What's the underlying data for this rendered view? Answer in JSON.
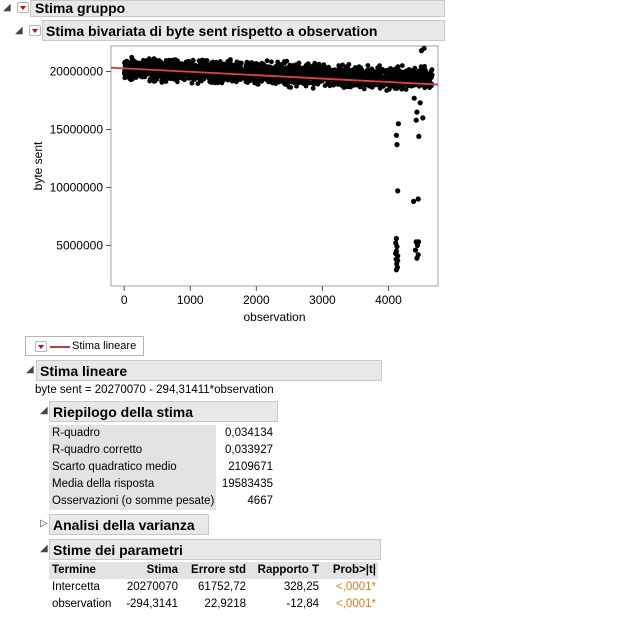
{
  "group": {
    "title": "Stima gruppo"
  },
  "bivariate": {
    "title": "Stima bivariata di byte sent rispetto a observation"
  },
  "chart_data": {
    "type": "scatter",
    "xlabel": "observation",
    "ylabel": "byte sent",
    "xlim": [
      -200,
      4750
    ],
    "ylim": [
      1500000,
      22200000
    ],
    "x_ticks": [
      0,
      1000,
      2000,
      3000,
      4000
    ],
    "y_ticks": [
      5000000,
      10000000,
      15000000,
      20000000
    ],
    "x_tick_labels": [
      "0",
      "1000",
      "2000",
      "3000",
      "4000"
    ],
    "y_tick_labels": [
      "5000000",
      "10000000",
      "15000000",
      "20000000"
    ],
    "point_color": "#000000",
    "fit_line": {
      "intercept": 20270070,
      "slope": -294.31411,
      "color": "#e0404a",
      "x_range": [
        -200,
        4750
      ]
    },
    "n_points": 4667,
    "bulk_band": {
      "x_range": [
        0,
        4667
      ],
      "y_range": [
        18300000,
        21500000
      ]
    },
    "outliers": [
      {
        "x": 4120,
        "y": 14500000
      },
      {
        "x": 4130,
        "y": 13700000
      },
      {
        "x": 4150,
        "y": 15500000
      },
      {
        "x": 4140,
        "y": 9700000
      },
      {
        "x": 4450,
        "y": 9000000
      },
      {
        "x": 4380,
        "y": 8800000
      },
      {
        "x": 4430,
        "y": 16500000
      },
      {
        "x": 4480,
        "y": 17300000
      },
      {
        "x": 4420,
        "y": 15800000
      },
      {
        "x": 4460,
        "y": 14400000
      },
      {
        "x": 4390,
        "y": 17700000
      },
      {
        "x": 4520,
        "y": 16000000
      },
      {
        "x": 4120,
        "y": 5600000
      },
      {
        "x": 4110,
        "y": 5200000
      },
      {
        "x": 4130,
        "y": 4900000
      },
      {
        "x": 4120,
        "y": 4500000
      },
      {
        "x": 4140,
        "y": 4100000
      },
      {
        "x": 4115,
        "y": 3800000
      },
      {
        "x": 4125,
        "y": 3400000
      },
      {
        "x": 4135,
        "y": 3100000
      },
      {
        "x": 4120,
        "y": 2900000
      },
      {
        "x": 4140,
        "y": 3700000
      },
      {
        "x": 4110,
        "y": 4300000
      },
      {
        "x": 4420,
        "y": 5300000
      },
      {
        "x": 4440,
        "y": 5000000
      },
      {
        "x": 4410,
        "y": 4600000
      },
      {
        "x": 4450,
        "y": 4200000
      },
      {
        "x": 4430,
        "y": 3900000
      },
      {
        "x": 4455,
        "y": 5300000
      },
      {
        "x": 4540,
        "y": 22000000
      },
      {
        "x": 4500,
        "y": 21800000
      },
      {
        "x": 4200,
        "y": 18500000
      }
    ]
  },
  "legend": {
    "label": "Stima lineare",
    "line_color": "#c83c3c"
  },
  "linear": {
    "title": "Stima lineare",
    "equation": "byte sent = 20270070 - 294,31411*observation"
  },
  "summary": {
    "title": "Riepilogo della stima",
    "rows": [
      {
        "label": "R-quadro",
        "value": "0,034134"
      },
      {
        "label": "R-quadro corretto",
        "value": "0,033927"
      },
      {
        "label": "Scarto quadratico medio",
        "value": "2109671"
      },
      {
        "label": "Media della risposta",
        "value": "19583435"
      },
      {
        "label": "Osservazioni (o somme pesate)",
        "value": "4667"
      }
    ]
  },
  "anova": {
    "title": "Analisi della varianza"
  },
  "params": {
    "title": "Stime dei parametri",
    "headers": [
      "Termine",
      "Stima",
      "Errore std",
      "Rapporto T",
      "Prob>|t|"
    ],
    "rows": [
      {
        "term": "Intercetta",
        "estimate": "20270070",
        "stderr": "61752,72",
        "t": "328,25",
        "p": "<,0001*"
      },
      {
        "term": "observation",
        "estimate": "-294,3141",
        "stderr": "22,9218",
        "t": "-12,84",
        "p": "<,0001*"
      }
    ],
    "p_color": "#e07a1f"
  }
}
